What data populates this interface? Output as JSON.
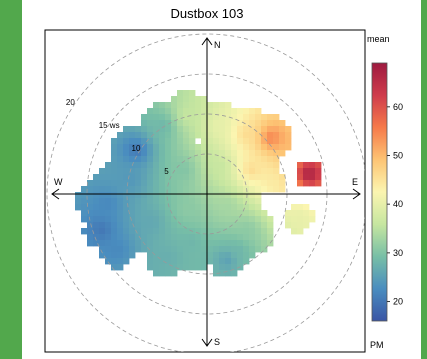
{
  "chart_data": {
    "type": "polar-plot",
    "title": "Dustbox 103",
    "directions": {
      "north": "N",
      "south": "S",
      "east": "E",
      "west": "W"
    },
    "rings": [
      {
        "value": 5,
        "label": "5"
      },
      {
        "value": 10,
        "label": "10"
      },
      {
        "value": 15,
        "label": "15 ws"
      },
      {
        "value": 20,
        "label": "20"
      }
    ],
    "radial_max": 25,
    "colorbar": {
      "title": "mean",
      "unit": "PM",
      "min": 16,
      "max": 69,
      "ticks": [
        20,
        30,
        40,
        50,
        60
      ],
      "palette": [
        "#3a55a5",
        "#4a8dbf",
        "#78bfa6",
        "#c6e6a0",
        "#fbf5b0",
        "#fdc474",
        "#f67a4a",
        "#cf3c4c",
        "#9e1a40"
      ]
    },
    "clusters": [
      {
        "cx": -12.5,
        "cy": -1.2,
        "r": 3.8,
        "v": 22
      },
      {
        "cx": -9.5,
        "cy": 1.8,
        "r": 3.8,
        "v": 24
      },
      {
        "cx": -8.8,
        "cy": 5.5,
        "r": 3.2,
        "v": 20
      },
      {
        "cx": -5.5,
        "cy": 8.5,
        "r": 3.0,
        "v": 28
      },
      {
        "cx": -2.5,
        "cy": 9.8,
        "r": 3.0,
        "v": 36
      },
      {
        "cx": 1.5,
        "cy": 8.5,
        "r": 3.2,
        "v": 40
      },
      {
        "cx": 5.0,
        "cy": 7.5,
        "r": 3.2,
        "v": 46
      },
      {
        "cx": 8.0,
        "cy": 7.0,
        "r": 2.8,
        "v": 55
      },
      {
        "cx": 5.5,
        "cy": 3.0,
        "r": 3.2,
        "v": 46
      },
      {
        "cx": 1.5,
        "cy": 3.5,
        "r": 3.6,
        "v": 36
      },
      {
        "cx": -3.0,
        "cy": 3.0,
        "r": 3.8,
        "v": 30
      },
      {
        "cx": -7.0,
        "cy": -3.5,
        "r": 3.8,
        "v": 26
      },
      {
        "cx": -2.5,
        "cy": -2.0,
        "r": 4.4,
        "v": 31
      },
      {
        "cx": 2.5,
        "cy": -1.5,
        "r": 4.4,
        "v": 33
      },
      {
        "cx": 5.0,
        "cy": -4.5,
        "r": 3.4,
        "v": 31
      },
      {
        "cx": -2.0,
        "cy": -6.0,
        "r": 3.8,
        "v": 28
      },
      {
        "cx": -5.0,
        "cy": -7.8,
        "r": 2.6,
        "v": 27
      },
      {
        "cx": -13.2,
        "cy": -4.5,
        "r": 2.2,
        "v": 20
      },
      {
        "cx": -11.2,
        "cy": -7.0,
        "r": 2.2,
        "v": 22
      },
      {
        "cx": 2.5,
        "cy": -8.2,
        "r": 2.2,
        "v": 25
      },
      {
        "cx": 3.8,
        "cy": -7.0,
        "r": 1.8,
        "v": 28
      },
      {
        "cx": 8.5,
        "cy": 1.5,
        "r": 1.3,
        "v": 44
      },
      {
        "cx": 11.5,
        "cy": -3.0,
        "r": 1.8,
        "v": 40
      },
      {
        "cx": 12.7,
        "cy": 2.5,
        "r": 1.7,
        "v": 68
      }
    ]
  }
}
